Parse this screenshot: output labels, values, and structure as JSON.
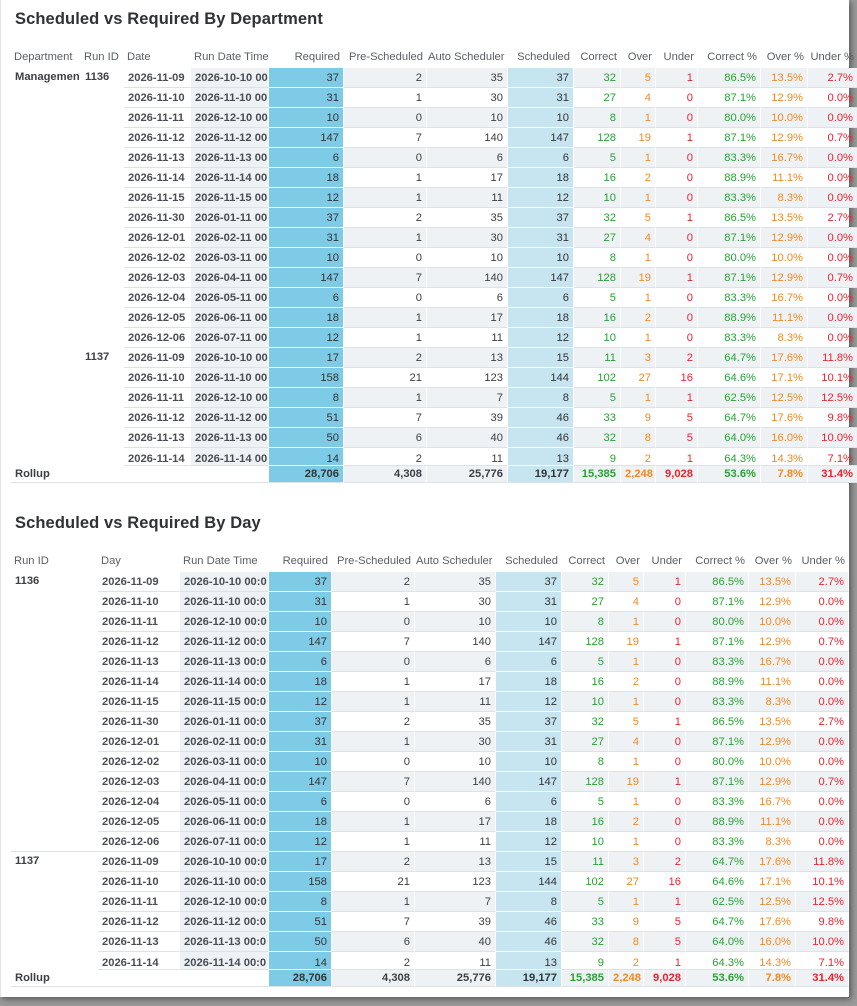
{
  "colors": {
    "required_col": "#7ecbe7",
    "scheduled_col": "#c6e5f1",
    "stripe": "#eff2f5",
    "correct": "#27a233",
    "over": "#f08a24",
    "under": "#e8252f"
  },
  "dept_table": {
    "title": "Scheduled vs Required By Department",
    "headers": [
      "Department",
      "Run ID",
      "Date",
      "Run Date Time",
      "Required",
      "Pre-Scheduled",
      "Auto Scheduler",
      "Scheduled",
      "Correct",
      "Over",
      "Under",
      "Correct %",
      "Over %",
      "Under %"
    ],
    "department": "Managemen",
    "groups": [
      {
        "run_id": "1136",
        "rows": [
          [
            "2026-11-09",
            "2026-10-10 00:",
            "37",
            "2",
            "35",
            "37",
            "32",
            "5",
            "1",
            "86.5%",
            "13.5%",
            "2.7%"
          ],
          [
            "2026-11-10",
            "2026-11-10 00:",
            "31",
            "1",
            "30",
            "31",
            "27",
            "4",
            "0",
            "87.1%",
            "12.9%",
            "0.0%"
          ],
          [
            "2026-11-11",
            "2026-12-10 00:",
            "10",
            "0",
            "10",
            "10",
            "8",
            "1",
            "0",
            "80.0%",
            "10.0%",
            "0.0%"
          ],
          [
            "2026-11-12",
            "2026-11-12 00:",
            "147",
            "7",
            "140",
            "147",
            "128",
            "19",
            "1",
            "87.1%",
            "12.9%",
            "0.7%"
          ],
          [
            "2026-11-13",
            "2026-11-13 00:",
            "6",
            "0",
            "6",
            "6",
            "5",
            "1",
            "0",
            "83.3%",
            "16.7%",
            "0.0%"
          ],
          [
            "2026-11-14",
            "2026-11-14 00:",
            "18",
            "1",
            "17",
            "18",
            "16",
            "2",
            "0",
            "88.9%",
            "11.1%",
            "0.0%"
          ],
          [
            "2026-11-15",
            "2026-11-15 00:",
            "12",
            "1",
            "11",
            "12",
            "10",
            "1",
            "0",
            "83.3%",
            "8.3%",
            "0.0%"
          ],
          [
            "2026-11-30",
            "2026-01-11 00:",
            "37",
            "2",
            "35",
            "37",
            "32",
            "5",
            "1",
            "86.5%",
            "13.5%",
            "2.7%"
          ],
          [
            "2026-12-01",
            "2026-02-11 00:",
            "31",
            "1",
            "30",
            "31",
            "27",
            "4",
            "0",
            "87.1%",
            "12.9%",
            "0.0%"
          ],
          [
            "2026-12-02",
            "2026-03-11 00:",
            "10",
            "0",
            "10",
            "10",
            "8",
            "1",
            "0",
            "80.0%",
            "10.0%",
            "0.0%"
          ],
          [
            "2026-12-03",
            "2026-04-11 00:",
            "147",
            "7",
            "140",
            "147",
            "128",
            "19",
            "1",
            "87.1%",
            "12.9%",
            "0.7%"
          ],
          [
            "2026-12-04",
            "2026-05-11 00:",
            "6",
            "0",
            "6",
            "6",
            "5",
            "1",
            "0",
            "83.3%",
            "16.7%",
            "0.0%"
          ],
          [
            "2026-12-05",
            "2026-06-11 00:",
            "18",
            "1",
            "17",
            "18",
            "16",
            "2",
            "0",
            "88.9%",
            "11.1%",
            "0.0%"
          ],
          [
            "2026-12-06",
            "2026-07-11 00:",
            "12",
            "1",
            "11",
            "12",
            "10",
            "1",
            "0",
            "83.3%",
            "8.3%",
            "0.0%"
          ]
        ]
      },
      {
        "run_id": "1137",
        "rows": [
          [
            "2026-11-09",
            "2026-10-10 00:",
            "17",
            "2",
            "13",
            "15",
            "11",
            "3",
            "2",
            "64.7%",
            "17.6%",
            "11.8%"
          ],
          [
            "2026-11-10",
            "2026-11-10 00:",
            "158",
            "21",
            "123",
            "144",
            "102",
            "27",
            "16",
            "64.6%",
            "17.1%",
            "10.1%"
          ],
          [
            "2026-11-11",
            "2026-12-10 00:",
            "8",
            "1",
            "7",
            "8",
            "5",
            "1",
            "1",
            "62.5%",
            "12.5%",
            "12.5%"
          ],
          [
            "2026-11-12",
            "2026-11-12 00:",
            "51",
            "7",
            "39",
            "46",
            "33",
            "9",
            "5",
            "64.7%",
            "17.6%",
            "9.8%"
          ],
          [
            "2026-11-13",
            "2026-11-13 00:",
            "50",
            "6",
            "40",
            "46",
            "32",
            "8",
            "5",
            "64.0%",
            "16.0%",
            "10.0%"
          ],
          [
            "2026-11-14",
            "2026-11-14 00:",
            "14",
            "2",
            "11",
            "13",
            "9",
            "2",
            "1",
            "64.3%",
            "14.3%",
            "7.1%"
          ]
        ]
      }
    ],
    "rollup": [
      "Rollup",
      "28,706",
      "4,308",
      "25,776",
      "19,177",
      "15,385",
      "2,248",
      "9,028",
      "53.6%",
      "7.8%",
      "31.4%"
    ]
  },
  "day_table": {
    "title": "Scheduled vs Required By Day",
    "headers": [
      "Run ID",
      "Day",
      "Run Date Time",
      "Required",
      "Pre-Scheduled",
      "Auto Scheduler",
      "Scheduled",
      "Correct",
      "Over",
      "Under",
      "Correct %",
      "Over %",
      "Under %"
    ],
    "groups": [
      {
        "run_id": "1136",
        "rows": [
          [
            "2026-11-09",
            "2026-10-10 00:0",
            "37",
            "2",
            "35",
            "37",
            "32",
            "5",
            "1",
            "86.5%",
            "13.5%",
            "2.7%"
          ],
          [
            "2026-11-10",
            "2026-11-10 00:0",
            "31",
            "1",
            "30",
            "31",
            "27",
            "4",
            "0",
            "87.1%",
            "12.9%",
            "0.0%"
          ],
          [
            "2026-11-11",
            "2026-12-10 00:0",
            "10",
            "0",
            "10",
            "10",
            "8",
            "1",
            "0",
            "80.0%",
            "10.0%",
            "0.0%"
          ],
          [
            "2026-11-12",
            "2026-11-12 00:0",
            "147",
            "7",
            "140",
            "147",
            "128",
            "19",
            "1",
            "87.1%",
            "12.9%",
            "0.7%"
          ],
          [
            "2026-11-13",
            "2026-11-13 00:0",
            "6",
            "0",
            "6",
            "6",
            "5",
            "1",
            "0",
            "83.3%",
            "16.7%",
            "0.0%"
          ],
          [
            "2026-11-14",
            "2026-11-14 00:0",
            "18",
            "1",
            "17",
            "18",
            "16",
            "2",
            "0",
            "88.9%",
            "11.1%",
            "0.0%"
          ],
          [
            "2026-11-15",
            "2026-11-15 00:0",
            "12",
            "1",
            "11",
            "12",
            "10",
            "1",
            "0",
            "83.3%",
            "8.3%",
            "0.0%"
          ],
          [
            "2026-11-30",
            "2026-01-11 00:0",
            "37",
            "2",
            "35",
            "37",
            "32",
            "5",
            "1",
            "86.5%",
            "13.5%",
            "2.7%"
          ],
          [
            "2026-12-01",
            "2026-02-11 00:0",
            "31",
            "1",
            "30",
            "31",
            "27",
            "4",
            "0",
            "87.1%",
            "12.9%",
            "0.0%"
          ],
          [
            "2026-12-02",
            "2026-03-11 00:0",
            "10",
            "0",
            "10",
            "10",
            "8",
            "1",
            "0",
            "80.0%",
            "10.0%",
            "0.0%"
          ],
          [
            "2026-12-03",
            "2026-04-11 00:0",
            "147",
            "7",
            "140",
            "147",
            "128",
            "19",
            "1",
            "87.1%",
            "12.9%",
            "0.7%"
          ],
          [
            "2026-12-04",
            "2026-05-11 00:0",
            "6",
            "0",
            "6",
            "6",
            "5",
            "1",
            "0",
            "83.3%",
            "16.7%",
            "0.0%"
          ],
          [
            "2026-12-05",
            "2026-06-11 00:0",
            "18",
            "1",
            "17",
            "18",
            "16",
            "2",
            "0",
            "88.9%",
            "11.1%",
            "0.0%"
          ],
          [
            "2026-12-06",
            "2026-07-11 00:0",
            "12",
            "1",
            "11",
            "12",
            "10",
            "1",
            "0",
            "83.3%",
            "8.3%",
            "0.0%"
          ]
        ]
      },
      {
        "run_id": "1137",
        "rows": [
          [
            "2026-11-09",
            "2026-10-10 00:0",
            "17",
            "2",
            "13",
            "15",
            "11",
            "3",
            "2",
            "64.7%",
            "17.6%",
            "11.8%"
          ],
          [
            "2026-11-10",
            "2026-11-10 00:0",
            "158",
            "21",
            "123",
            "144",
            "102",
            "27",
            "16",
            "64.6%",
            "17.1%",
            "10.1%"
          ],
          [
            "2026-11-11",
            "2026-12-10 00:0",
            "8",
            "1",
            "7",
            "8",
            "5",
            "1",
            "1",
            "62.5%",
            "12.5%",
            "12.5%"
          ],
          [
            "2026-11-12",
            "2026-11-12 00:0",
            "51",
            "7",
            "39",
            "46",
            "33",
            "9",
            "5",
            "64.7%",
            "17.6%",
            "9.8%"
          ],
          [
            "2026-11-13",
            "2026-11-13 00:0",
            "50",
            "6",
            "40",
            "46",
            "32",
            "8",
            "5",
            "64.0%",
            "16.0%",
            "10.0%"
          ],
          [
            "2026-11-14",
            "2026-11-14 00:0",
            "14",
            "2",
            "11",
            "13",
            "9",
            "2",
            "1",
            "64.3%",
            "14.3%",
            "7.1%"
          ]
        ]
      }
    ],
    "rollup": [
      "Rollup",
      "28,706",
      "4,308",
      "25,776",
      "19,177",
      "15,385",
      "2,248",
      "9,028",
      "53.6%",
      "7.8%",
      "31.4%"
    ]
  }
}
